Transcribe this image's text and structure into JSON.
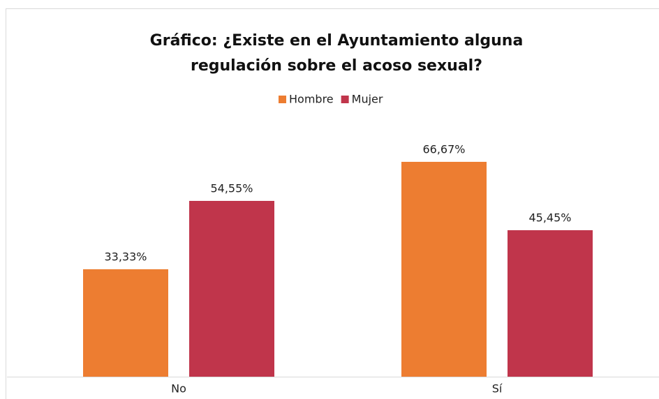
{
  "chart_data": {
    "type": "bar",
    "title": [
      "Gráfico: ¿Existe en el Ayuntamiento alguna",
      "regulación sobre el acoso sexual?"
    ],
    "categories": [
      "No",
      "Sí"
    ],
    "series": [
      {
        "name": "Hombre",
        "color": "#ED7D31",
        "values": [
          33.33,
          66.67
        ],
        "value_labels": [
          "33,33%",
          "66,67%"
        ]
      },
      {
        "name": "Mujer",
        "color": "#C0354B",
        "values": [
          54.55,
          45.45
        ],
        "value_labels": [
          "54,55%",
          "45,45%"
        ]
      }
    ],
    "legend": "top"
  }
}
